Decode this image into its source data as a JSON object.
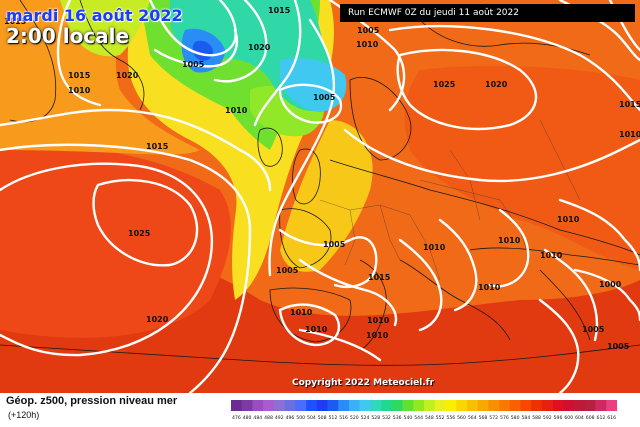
{
  "header": {
    "date": "mardi 16 août 2022",
    "local_time": "2:00 locale",
    "run_info": "Run ECMWF 0Z du jeudi 11 août 2022"
  },
  "footer": {
    "copyright": "Copyright 2022 Meteociel.fr",
    "legend_title": "Géop. z500, pression niveau mer",
    "legend_sub": "(+120h)"
  },
  "isobar_labels": [
    "1015",
    "1005",
    "1020",
    "1005",
    "1015",
    "1010",
    "1020",
    "1005",
    "1025",
    "1020",
    "1010",
    "1015",
    "1025",
    "1020",
    "1005",
    "1015",
    "1005",
    "1010",
    "1010",
    "1010",
    "1010",
    "1015",
    "1010",
    "1010",
    "1010",
    "1010",
    "1010",
    "1010",
    "1000",
    "1005",
    "1005",
    "1010",
    "1015"
  ],
  "scale_labels": [
    "476",
    "480",
    "484",
    "488",
    "492",
    "496",
    "500",
    "504",
    "508",
    "512",
    "516",
    "520",
    "524",
    "528",
    "532",
    "536",
    "540",
    "544",
    "548",
    "552",
    "556",
    "560",
    "564",
    "568",
    "572",
    "576",
    "580",
    "584",
    "588",
    "592",
    "596",
    "600",
    "604",
    "608",
    "612",
    "616"
  ],
  "scale_colors": [
    "#6a2c91",
    "#7d3aa5",
    "#9a4fc0",
    "#a85cd0",
    "#8a6fd8",
    "#6a70e0",
    "#4a6cff",
    "#2050ff",
    "#1f3cf5",
    "#1a5cf0",
    "#2a8cf5",
    "#3ab0f8",
    "#40c8f0",
    "#30d8c0",
    "#20d890",
    "#30d860",
    "#60e030",
    "#90e820",
    "#c0f020",
    "#e8f020",
    "#f8f000",
    "#f8d800",
    "#f8c000",
    "#f8a800",
    "#f89000",
    "#f87800",
    "#f86000",
    "#f84800",
    "#f03000",
    "#e82010",
    "#e01020",
    "#d01030",
    "#c01838",
    "#b82040",
    "#d02860",
    "#e84080"
  ]
}
